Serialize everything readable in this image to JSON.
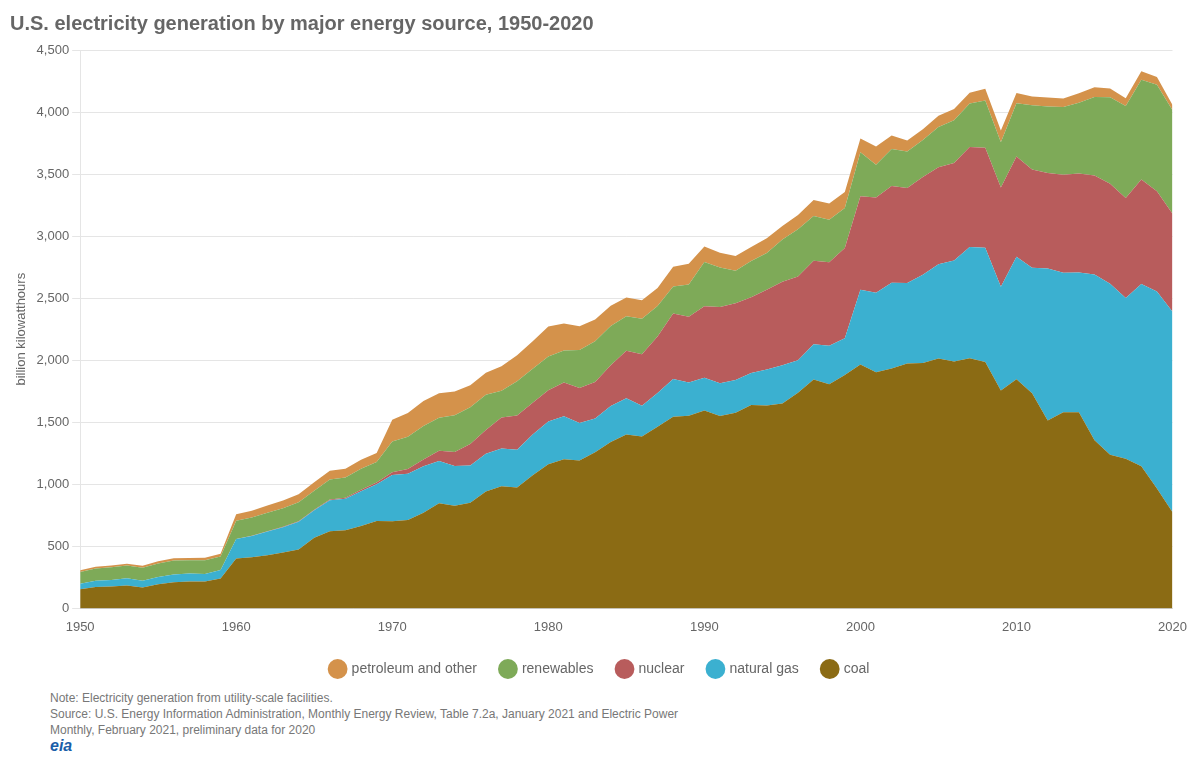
{
  "chart_data": {
    "type": "area",
    "title": "U.S. electricity generation by major energy source, 1950-2020",
    "y_label": "billion kilowatthours",
    "annotations": [
      "Note: Electricity generation from utility-scale facilities.",
      "Source: U.S. Energy Information Administration, Monthly Energy Review, Table 7.2a, January 2021 and Electric Power",
      "Monthly, February 2021, preliminary data for 2020",
      "eia"
    ],
    "stacked": true,
    "grid": true,
    "legend": "bottom",
    "x": [
      1950,
      1951,
      1952,
      1953,
      1954,
      1955,
      1956,
      1957,
      1958,
      1959,
      1960,
      1961,
      1962,
      1963,
      1964,
      1965,
      1966,
      1967,
      1968,
      1969,
      1970,
      1971,
      1972,
      1973,
      1974,
      1975,
      1976,
      1977,
      1978,
      1979,
      1980,
      1981,
      1982,
      1983,
      1984,
      1985,
      1986,
      1987,
      1988,
      1989,
      1990,
      1991,
      1992,
      1993,
      1994,
      1995,
      1996,
      1997,
      1998,
      1999,
      2000,
      2001,
      2002,
      2003,
      2004,
      2005,
      2006,
      2007,
      2008,
      2009,
      2010,
      2011,
      2012,
      2013,
      2014,
      2015,
      2016,
      2017,
      2018,
      2019,
      2020
    ],
    "xlim": [
      1950,
      2020
    ],
    "xticks": [
      1950,
      1960,
      1970,
      1980,
      1990,
      2000,
      2010,
      2020
    ],
    "ylim": [
      0,
      4500
    ],
    "yticks": [
      0,
      500,
      {
        "value": 1000,
        "label": "1,000"
      },
      {
        "value": 1500,
        "label": "1,500"
      },
      {
        "value": 2000,
        "label": "2,000"
      },
      {
        "value": 2500,
        "label": "2,500"
      },
      {
        "value": 3000,
        "label": "3,000"
      },
      {
        "value": 3500,
        "label": "3,500"
      },
      {
        "value": 4000,
        "label": "4,000"
      },
      {
        "value": 4500,
        "label": "4,500"
      }
    ],
    "series": [
      {
        "name": "coal",
        "color": "#8B6B14",
        "values": [
          154,
          172,
          176,
          184,
          168,
          194,
          210,
          216,
          216,
          241,
          402,
          412,
          428,
          450,
          475,
          570,
          621,
          629,
          664,
          705,
          703,
          712,
          770,
          847,
          828,
          852,
          943,
          984,
          975,
          1074,
          1161,
          1202,
          1191,
          1258,
          1341,
          1401,
          1385,
          1463,
          1545,
          1553,
          1594,
          1551,
          1576,
          1639,
          1635,
          1652,
          1737,
          1845,
          1807,
          1881,
          1966,
          1904,
          1933,
          1974,
          1978,
          2013,
          1990,
          2016,
          1986,
          1755,
          1847,
          1733,
          1514,
          1581,
          1581,
          1356,
          1239,
          1206,
          1146,
          966,
          774
        ]
      },
      {
        "name": "natural gas",
        "color": "#3BB0D0",
        "values": [
          44,
          50,
          53,
          58,
          54,
          60,
          64,
          65,
          62,
          69,
          157,
          171,
          192,
          204,
          224,
          221,
          251,
          254,
          280,
          295,
          372,
          374,
          375,
          340,
          319,
          299,
          304,
          304,
          304,
          328,
          346,
          346,
          304,
          273,
          290,
          292,
          249,
          273,
          304,
          268,
          264,
          264,
          264,
          259,
          291,
          307,
          263,
          283,
          309,
          296,
          601,
          639,
          691,
          649,
          710,
          760,
          813,
          896,
          920,
          837,
          987,
          1013,
          1225,
          1124,
          1126,
          1335,
          1378,
          1296,
          1468,
          1587,
          1617
        ]
      },
      {
        "name": "nuclear",
        "color": "#B85C5C",
        "values": [
          0,
          0,
          0,
          0,
          0,
          0,
          0,
          0,
          0,
          0,
          1,
          2,
          2,
          3,
          4,
          4,
          6,
          8,
          13,
          14,
          22,
          38,
          54,
          83,
          114,
          173,
          191,
          251,
          276,
          255,
          251,
          273,
          282,
          294,
          328,
          384,
          414,
          455,
          527,
          529,
          577,
          613,
          619,
          610,
          641,
          673,
          675,
          673,
          673,
          728,
          754,
          769,
          780,
          764,
          788,
          782,
          787,
          806,
          806,
          799,
          807,
          790,
          769,
          789,
          797,
          797,
          805,
          805,
          843,
          809,
          790
        ]
      },
      {
        "name": "renewables",
        "color": "#7EAA58",
        "values": [
          96,
          99,
          102,
          103,
          105,
          108,
          112,
          107,
          110,
          109,
          146,
          147,
          148,
          151,
          153,
          154,
          161,
          163,
          168,
          165,
          247,
          259,
          270,
          266,
          295,
          297,
          284,
          214,
          276,
          275,
          272,
          257,
          305,
          328,
          317,
          277,
          287,
          245,
          219,
          261,
          356,
          319,
          263,
          291,
          298,
          340,
          380,
          362,
          344,
          322,
          355,
          263,
          298,
          296,
          299,
          325,
          344,
          350,
          381,
          366,
          430,
          519,
          536,
          546,
          571,
          634,
          697,
          742,
          803,
          858,
          834
        ]
      },
      {
        "name": "petroleum and other",
        "color": "#D4924B",
        "values": [
          14,
          15,
          15,
          15,
          16,
          17,
          18,
          19,
          20,
          21,
          52,
          55,
          59,
          61,
          63,
          67,
          70,
          71,
          73,
          74,
          177,
          191,
          202,
          197,
          191,
          177,
          178,
          199,
          209,
          220,
          241,
          217,
          191,
          176,
          162,
          152,
          149,
          147,
          159,
          167,
          126,
          120,
          118,
          113,
          117,
          109,
          115,
          128,
          130,
          128,
          111,
          148,
          108,
          87,
          86,
          90,
          91,
          88,
          95,
          94,
          83,
          71,
          74,
          70,
          76,
          77,
          70,
          62,
          68,
          62,
          42
        ]
      }
    ]
  }
}
